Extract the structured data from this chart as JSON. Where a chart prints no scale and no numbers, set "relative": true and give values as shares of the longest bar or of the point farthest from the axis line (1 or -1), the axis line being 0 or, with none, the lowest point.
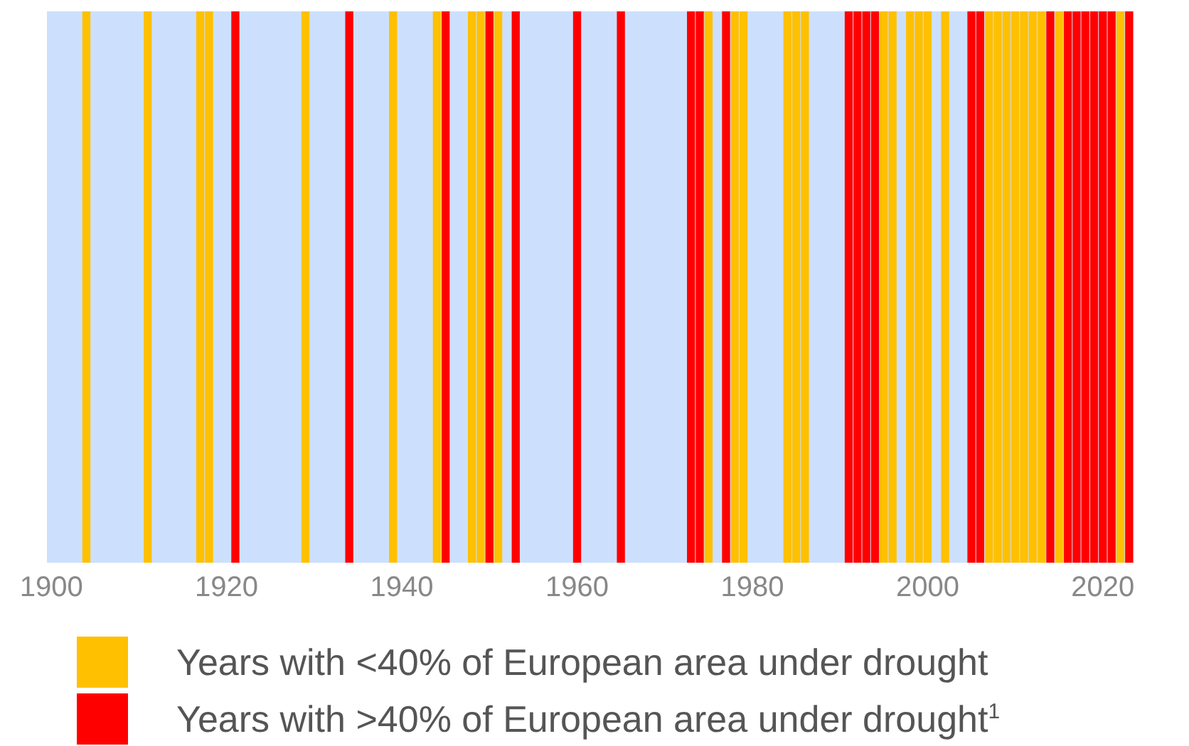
{
  "chart_data": {
    "type": "bar",
    "relative": true,
    "legend": "bottom",
    "xlim": [
      1899.5,
      2023.5
    ],
    "xticks": [
      1900,
      1920,
      1940,
      1960,
      1980,
      2000,
      2020
    ],
    "bands": [
      {
        "axis": "x",
        "from": 1899.5,
        "to": 2023.5,
        "color": "#cce0fe"
      }
    ],
    "series": [
      {
        "name": "Years with <40% of European area under drought",
        "color": "#ffc000",
        "x": [
          1904,
          1911,
          1917,
          1918,
          1929,
          1939,
          1944,
          1948,
          1949,
          1951,
          1975,
          1978,
          1979,
          1984,
          1985,
          1986,
          1995,
          1996,
          1998,
          1999,
          2000,
          2002,
          2007,
          2008,
          2009,
          2010,
          2011,
          2012,
          2013,
          2015,
          2022
        ],
        "values": [
          1,
          1,
          1,
          1,
          1,
          1,
          1,
          1,
          1,
          1,
          1,
          1,
          1,
          1,
          1,
          1,
          1,
          1,
          1,
          1,
          1,
          1,
          1,
          1,
          1,
          1,
          1,
          1,
          1,
          1,
          1
        ]
      },
      {
        "name": "Years with >40% of European area under drought$^{1}$",
        "color": "#ff0000",
        "x": [
          1921,
          1934,
          1945,
          1950,
          1953,
          1960,
          1965,
          1973,
          1974,
          1977,
          1991,
          1992,
          1993,
          1994,
          2005,
          2006,
          2014,
          2016,
          2017,
          2018,
          2019,
          2020,
          2021,
          2023
        ],
        "values": [
          1,
          1,
          1,
          1,
          1,
          1,
          1,
          1,
          1,
          1,
          1,
          1,
          1,
          1,
          1,
          1,
          1,
          1,
          1,
          1,
          1,
          1,
          1,
          1
        ]
      }
    ]
  }
}
